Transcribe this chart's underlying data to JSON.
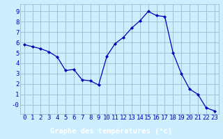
{
  "hours": [
    0,
    1,
    2,
    3,
    4,
    5,
    6,
    7,
    8,
    9,
    10,
    11,
    12,
    13,
    14,
    15,
    16,
    17,
    18,
    19,
    20,
    21,
    22,
    23
  ],
  "temps": [
    5.8,
    5.6,
    5.4,
    5.1,
    4.6,
    3.3,
    3.4,
    2.4,
    2.3,
    1.9,
    4.7,
    5.9,
    6.5,
    7.4,
    8.1,
    9.0,
    8.6,
    8.5,
    5.0,
    3.0,
    1.5,
    1.0,
    -0.3,
    -0.6
  ],
  "line_color": "#0000bb",
  "marker_color": "#0000bb",
  "bg_color": "#cceeff",
  "grid_color": "#99bbcc",
  "xlabel": "Graphe des températures (°c)",
  "xlabel_color": "#ffffff",
  "xlabel_bg": "#4488ff",
  "ytick_labels": [
    "-0",
    "1",
    "2",
    "3",
    "4",
    "5",
    "6",
    "7",
    "8",
    "9"
  ],
  "ytick_vals": [
    0,
    1,
    2,
    3,
    4,
    5,
    6,
    7,
    8,
    9
  ],
  "ylim": [
    -0.9,
    9.7
  ],
  "xlim": [
    -0.5,
    23.5
  ],
  "tick_color": "#0000bb",
  "tick_fontsize": 6.5,
  "xlabel_fontsize": 7.5
}
